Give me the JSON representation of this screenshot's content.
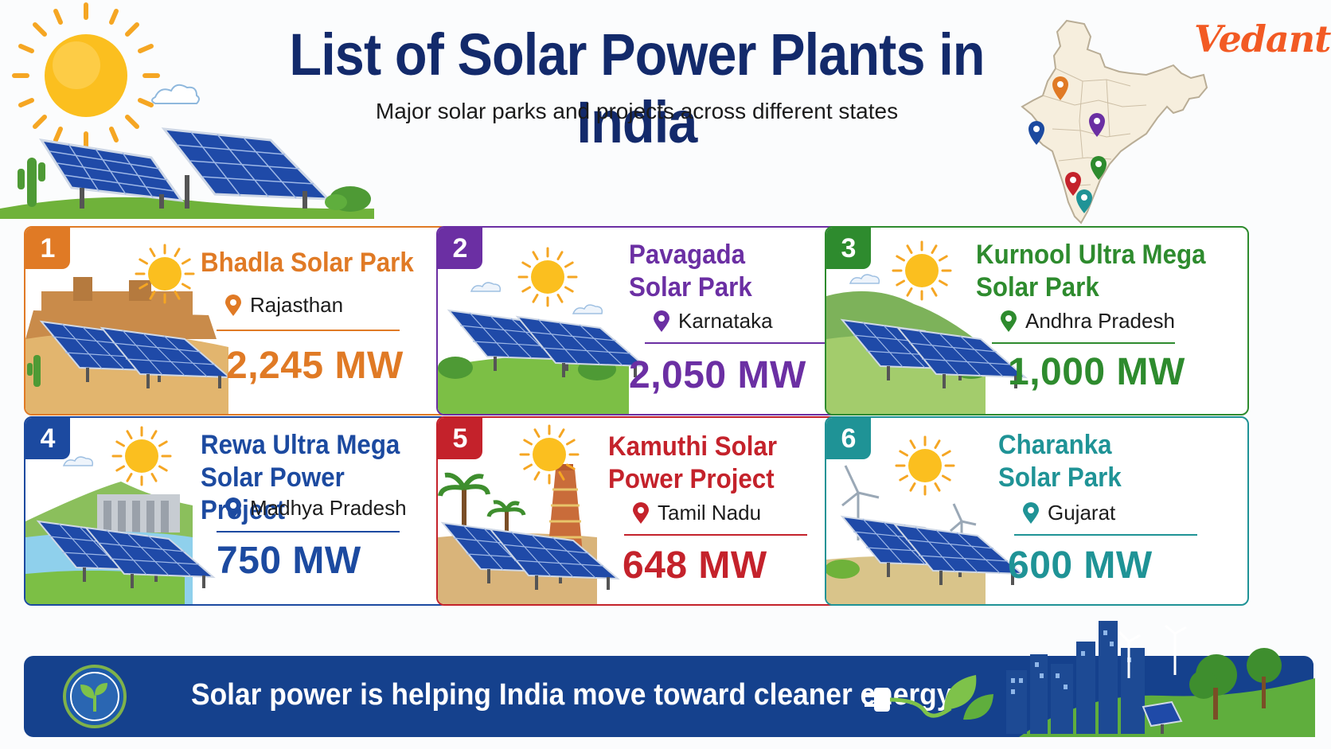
{
  "header": {
    "title": "List of Solar Power Plants in India",
    "subtitle": "Major solar parks and projects across different states",
    "brand": "Vedantu"
  },
  "colors": {
    "title": "#132a6b",
    "brand": "#f25a24",
    "footer_bg": "#15418d"
  },
  "plants": [
    {
      "rank": "1",
      "name_lines": [
        "Bhadla Solar Park"
      ],
      "state": "Rajasthan",
      "capacity": "2,245 MW",
      "color": "#e07a25",
      "scene": "desert-fort"
    },
    {
      "rank": "2",
      "name_lines": [
        "Pavagada",
        "Solar Park"
      ],
      "state": "Karnataka",
      "capacity": "2,050 MW",
      "color": "#6b2fa3",
      "scene": "grassland"
    },
    {
      "rank": "3",
      "name_lines": [
        "Kurnool Ultra Mega",
        "Solar Park"
      ],
      "state": "Andhra Pradesh",
      "capacity": "1,000 MW",
      "color": "#2e8b2e",
      "scene": "hills"
    },
    {
      "rank": "4",
      "name_lines": [
        "Rewa Ultra Mega",
        "Solar Power Project"
      ],
      "state": "Madhya Pradesh",
      "capacity": "750 MW",
      "color": "#1c4aa0",
      "scene": "dam"
    },
    {
      "rank": "5",
      "name_lines": [
        "Kamuthi Solar",
        "Power Project"
      ],
      "state": "Tamil Nadu",
      "capacity": "648 MW",
      "color": "#c4222b",
      "scene": "temple"
    },
    {
      "rank": "6",
      "name_lines": [
        "Charanka",
        "Solar Park"
      ],
      "state": "Gujarat",
      "capacity": "600 MW",
      "color": "#1f9396",
      "scene": "wind"
    }
  ],
  "footer": {
    "text": "Solar power is helping India move toward cleaner energy."
  },
  "icons": [
    "sun-icon",
    "solar-panel-icon",
    "india-map-icon",
    "location-pin-icon",
    "leaf-icon",
    "plug-icon",
    "city-skyline-icon",
    "wind-turbine-icon"
  ]
}
